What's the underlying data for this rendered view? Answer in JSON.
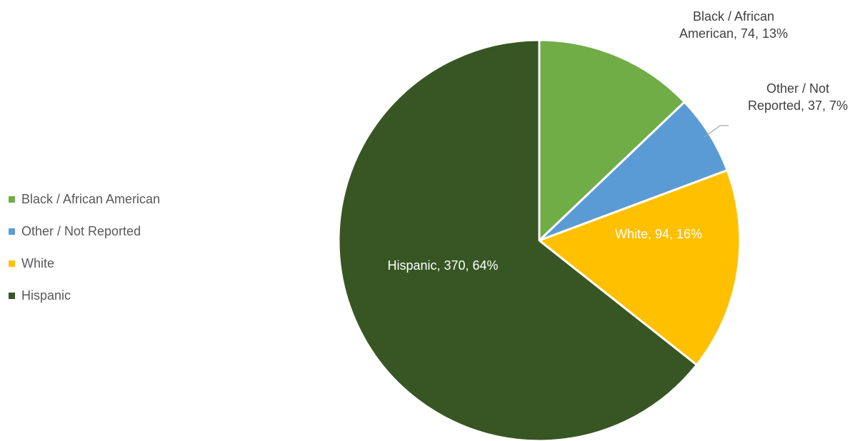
{
  "chart_data": {
    "type": "pie",
    "title": "",
    "legend_position": "left",
    "slices": [
      {
        "label": "Black / African American",
        "value": 74,
        "percent": "13%",
        "color": "#70AD47",
        "data_label": [
          "Black / African",
          "American, 74, 13%"
        ],
        "label_color": "#404040",
        "label_position": "outside"
      },
      {
        "label": "Other / Not Reported",
        "value": 37,
        "percent": "7%",
        "color": "#5B9BD5",
        "data_label": [
          "Other / Not",
          "Reported, 37, 7%"
        ],
        "label_color": "#404040",
        "label_position": "outside"
      },
      {
        "label": "White",
        "value": 94,
        "percent": "16%",
        "color": "#FFC000",
        "data_label": [
          "White, 94, 16%"
        ],
        "label_color": "#ffffff",
        "label_position": "inside"
      },
      {
        "label": "Hispanic",
        "value": 370,
        "percent": "64%",
        "color": "#375623",
        "data_label": [
          "Hispanic, 370, 64%"
        ],
        "label_color": "#ffffff",
        "label_position": "inside"
      }
    ]
  }
}
